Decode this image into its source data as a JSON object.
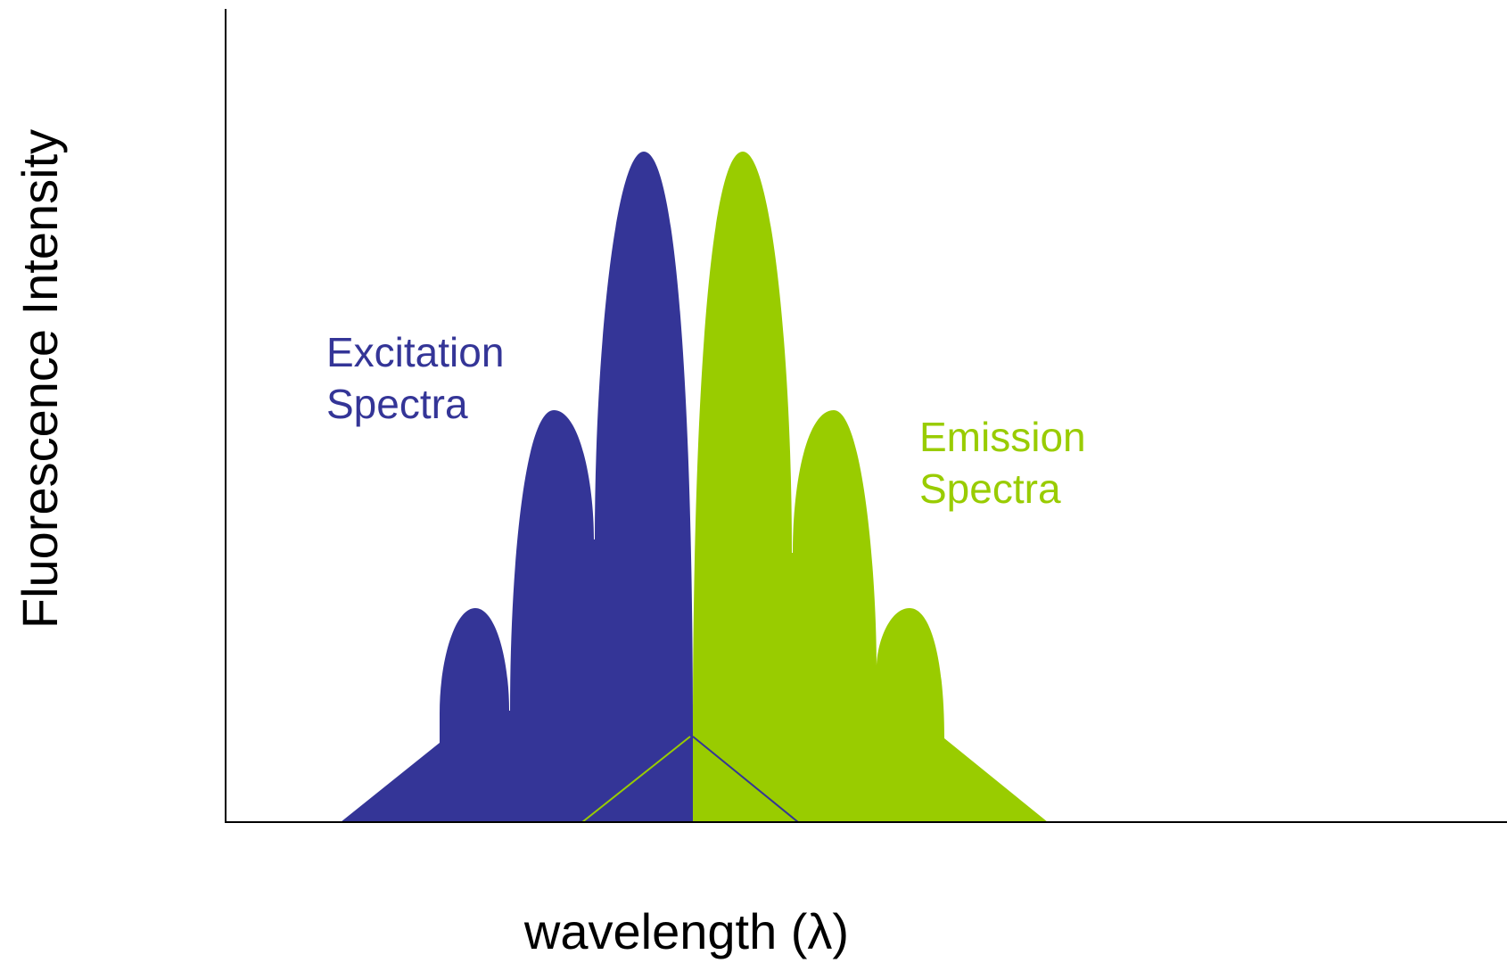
{
  "axes": {
    "y_title": "Fluorescence Intensity",
    "x_title": "wavelength (λ)"
  },
  "series": [
    {
      "key": "excitation",
      "label_line1": "Excitation",
      "label_line2": "Spectra",
      "color": "#343597"
    },
    {
      "key": "emission",
      "label_line1": "Emission",
      "label_line2": "Spectra",
      "color": "#99cc00"
    }
  ]
}
